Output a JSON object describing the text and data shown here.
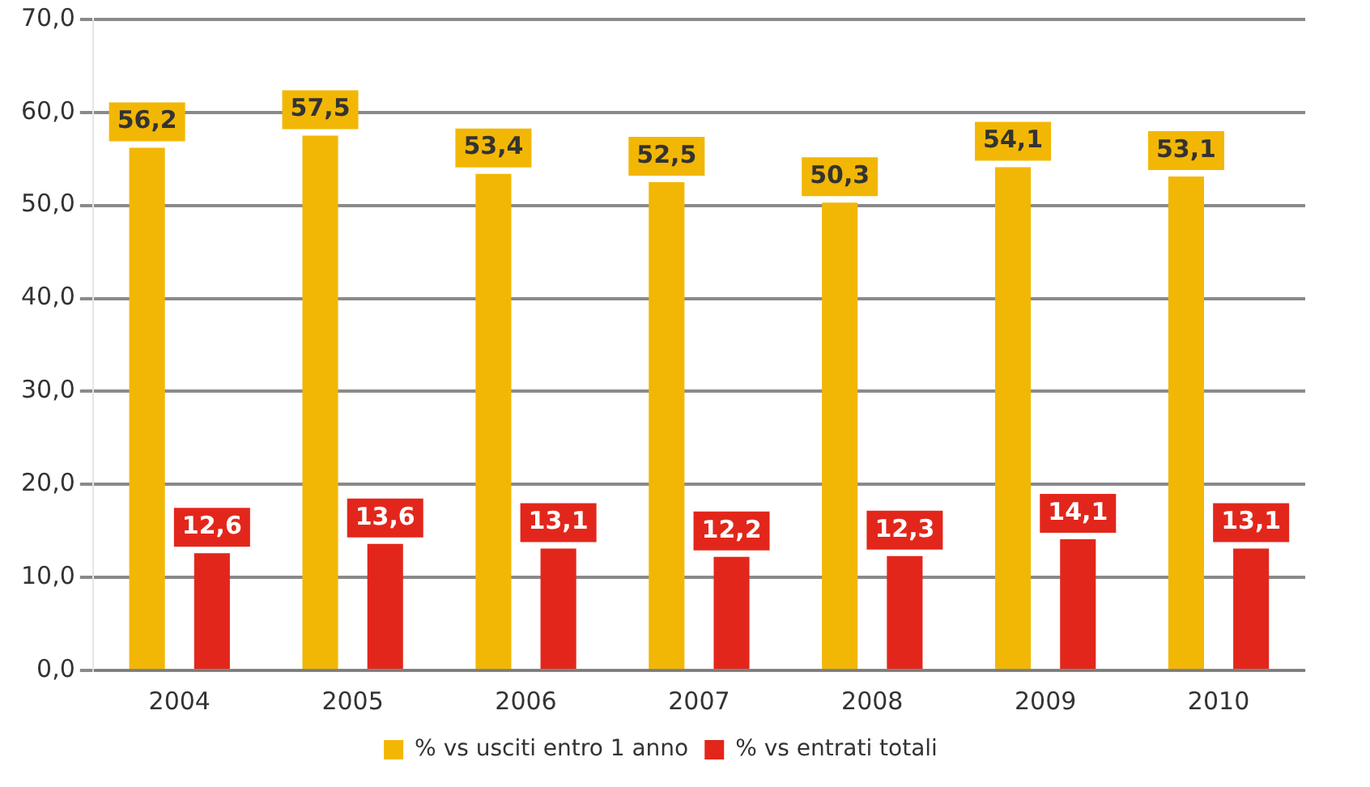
{
  "chart_data": {
    "type": "bar",
    "categories": [
      "2004",
      "2005",
      "2006",
      "2007",
      "2008",
      "2009",
      "2010"
    ],
    "series": [
      {
        "name": "% vs usciti entro 1 anno",
        "color": "#f2b705",
        "values": [
          56.2,
          57.5,
          53.4,
          52.5,
          50.3,
          54.1,
          53.1
        ],
        "value_labels": [
          "56,2",
          "57,5",
          "53,4",
          "52,5",
          "50,3",
          "54,1",
          "53,1"
        ]
      },
      {
        "name": "% vs entrati totali",
        "color": "#e3261b",
        "values": [
          12.6,
          13.6,
          13.1,
          12.2,
          12.3,
          14.1,
          13.1
        ],
        "value_labels": [
          "12,6",
          "13,6",
          "13,1",
          "12,2",
          "12,3",
          "14,1",
          "13,1"
        ]
      }
    ],
    "ylim": [
      0,
      70
    ],
    "yticks": [
      {
        "value": 0,
        "label": "0,0"
      },
      {
        "value": 10,
        "label": "10,0"
      },
      {
        "value": 20,
        "label": "20,0"
      },
      {
        "value": 30,
        "label": "30,0"
      },
      {
        "value": 40,
        "label": "40,0"
      },
      {
        "value": 50,
        "label": "50,0"
      },
      {
        "value": 60,
        "label": "60,0"
      },
      {
        "value": 70,
        "label": "70,0"
      }
    ],
    "grid": "y",
    "legend": "bottom"
  }
}
